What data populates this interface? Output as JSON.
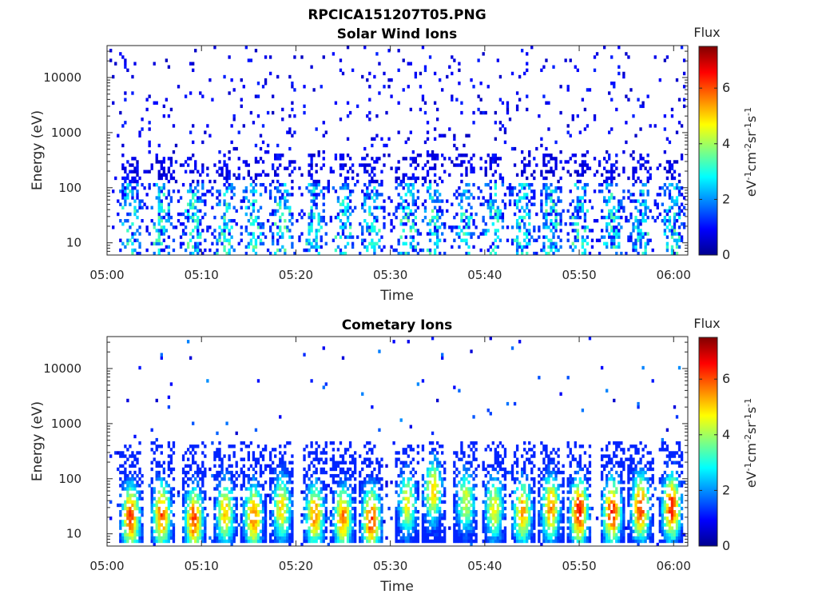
{
  "figure": {
    "title": "RPCICA151207T05.PNG"
  },
  "chart_data": [
    {
      "type": "heatmap",
      "title": "Solar Wind Ions",
      "xlabel": "Time",
      "ylabel": "Energy (eV)",
      "x_ticks": [
        "05:00",
        "05:10",
        "05:20",
        "05:30",
        "05:40",
        "05:50",
        "06:00"
      ],
      "xlim_minutes": [
        0,
        61.5
      ],
      "y_scale": "log",
      "y_ticks": [
        "10",
        "100",
        "1000",
        "10000"
      ],
      "ylim": [
        6,
        38000
      ],
      "colorbar": {
        "label": "Flux",
        "unit": "eV-1cm-2sr-1s-1",
        "ticks": [
          "0",
          "2",
          "4",
          "6"
        ],
        "range": [
          0,
          7.5
        ],
        "colormap": "jet"
      },
      "description_values": {
        "burst_minutes": [
          2.5,
          5.8,
          9.2,
          12.5,
          15.5,
          18.5,
          22.0,
          25.0,
          28.0,
          31.8,
          34.5,
          38.0,
          41.0,
          44.0,
          47.0,
          50.0,
          53.5,
          56.5,
          59.8
        ],
        "typical_flux_low_energy": 1.5,
        "typical_flux_sparse_high_energy": 0.6
      }
    },
    {
      "type": "heatmap",
      "title": "Cometary Ions",
      "xlabel": "Time",
      "ylabel": "Energy (eV)",
      "x_ticks": [
        "05:00",
        "05:10",
        "05:20",
        "05:30",
        "05:40",
        "05:50",
        "06:00"
      ],
      "xlim_minutes": [
        0,
        61.5
      ],
      "y_scale": "log",
      "y_ticks": [
        "10",
        "100",
        "1000",
        "10000"
      ],
      "ylim": [
        6,
        38000
      ],
      "colorbar": {
        "label": "Flux",
        "unit": "eV-1cm-2sr-1s-1",
        "ticks": [
          "0",
          "2",
          "4",
          "6"
        ],
        "range": [
          0,
          7.5
        ],
        "colormap": "jet"
      },
      "description_values": {
        "burst_minutes": [
          2.5,
          5.8,
          9.2,
          12.5,
          15.5,
          18.5,
          22.0,
          25.0,
          28.0,
          31.8,
          34.5,
          38.0,
          41.0,
          44.0,
          47.0,
          50.0,
          53.5,
          56.5,
          59.8
        ],
        "burst_peak_flux": [
          5.8,
          5.6,
          5.7,
          4.8,
          5.4,
          4.6,
          5.2,
          5.3,
          5.9,
          4.2,
          4.6,
          4.0,
          4.4,
          5.0,
          5.2,
          6.1,
          6.0,
          5.8,
          6.0
        ],
        "burst_peak_energy_eV": [
          20,
          22,
          18,
          25,
          20,
          30,
          22,
          20,
          18,
          35,
          60,
          40,
          30,
          25,
          30,
          25,
          25,
          30,
          30
        ],
        "burst_top_energy_eV": 500
      }
    }
  ]
}
